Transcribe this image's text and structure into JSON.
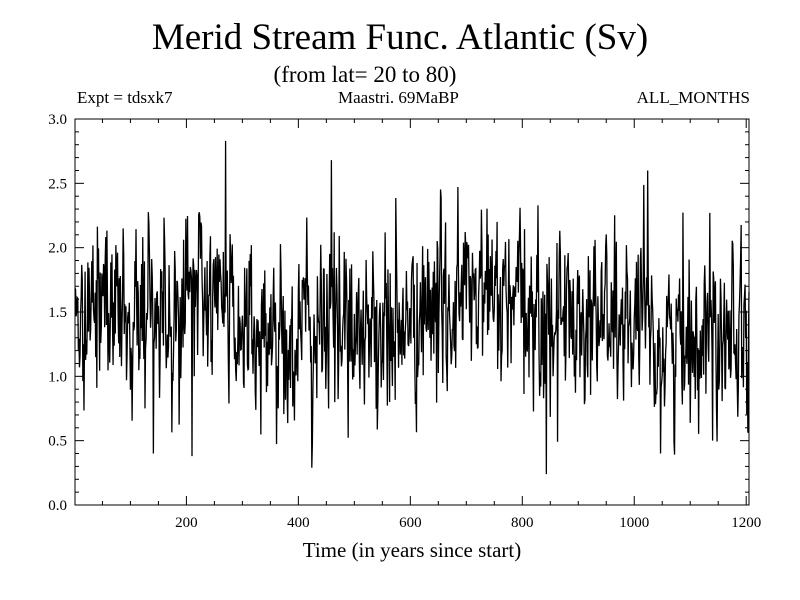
{
  "chart_data": {
    "type": "line",
    "title": "Merid Stream Func. Atlantic (Sv)",
    "subtitle": "(from lat= 20 to 80)",
    "annotations": {
      "left": "Expt = tdsxk7",
      "center": "Maastri.  69MaBP",
      "right": "ALL_MONTHS"
    },
    "xlabel": "Time (in years since start)",
    "ylabel": "",
    "xlim": [
      1,
      1205
    ],
    "ylim": [
      0.0,
      3.0
    ],
    "xticks": [
      200,
      400,
      600,
      800,
      1000,
      1200
    ],
    "xtick_labels": [
      "200",
      "400",
      "600",
      "800",
      "1000",
      "1200"
    ],
    "yticks": [
      0.0,
      0.5,
      1.0,
      1.5,
      2.0,
      2.5,
      3.0
    ],
    "ytick_labels": [
      "0.0",
      "0.5",
      "1.0",
      "1.5",
      "2.0",
      "2.5",
      "3.0"
    ],
    "grid": false,
    "series": [
      {
        "name": "Merid Stream Func. Atlantic",
        "color": "#000000",
        "n": 1205,
        "mean": 1.45,
        "std": 0.35,
        "min": 0.24,
        "max": 2.83,
        "notable_points": [
          {
            "x": 141,
            "y": 0.4
          },
          {
            "x": 210,
            "y": 0.38
          },
          {
            "x": 270,
            "y": 2.83
          },
          {
            "x": 459,
            "y": 2.68
          },
          {
            "x": 843,
            "y": 0.24
          },
          {
            "x": 1024,
            "y": 2.6
          },
          {
            "x": 1140,
            "y": 0.5
          }
        ]
      }
    ]
  }
}
